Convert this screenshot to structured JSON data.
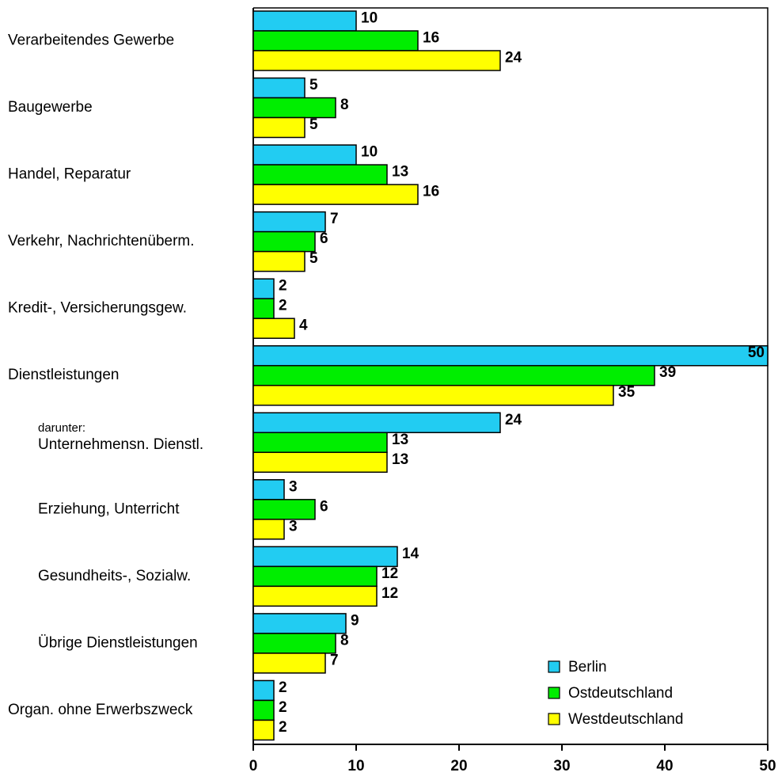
{
  "chart_data": {
    "type": "bar",
    "orientation": "horizontal",
    "categories": [
      "Verarbeitendes Gewerbe",
      "Baugewerbe",
      "Handel, Reparatur",
      "Verkehr, Nachrichtenüberm.",
      "Kredit-, Versicherungsgew.",
      "Dienstleistungen",
      "Unternehmensn. Dienstl.",
      "Erziehung, Unterricht",
      "Gesundheits-, Sozialw.",
      "Übrige Dienstleistungen",
      "Organ. ohne Erwerbszweck"
    ],
    "annotation": "darunter:",
    "series": [
      {
        "name": "Berlin",
        "color": "#22ccf2",
        "values": [
          10,
          5,
          10,
          7,
          2,
          50,
          24,
          3,
          14,
          9,
          2
        ]
      },
      {
        "name": "Ostdeutschland",
        "color": "#00ee00",
        "values": [
          16,
          8,
          13,
          6,
          2,
          39,
          13,
          6,
          12,
          8,
          2
        ]
      },
      {
        "name": "Westdeutschland",
        "color": "#ffff00",
        "values": [
          24,
          5,
          16,
          5,
          4,
          35,
          13,
          3,
          12,
          7,
          2
        ]
      }
    ],
    "xlim": [
      0,
      50
    ],
    "xticks": [
      0,
      10,
      20,
      30,
      40,
      50
    ],
    "legend": "lower right"
  }
}
